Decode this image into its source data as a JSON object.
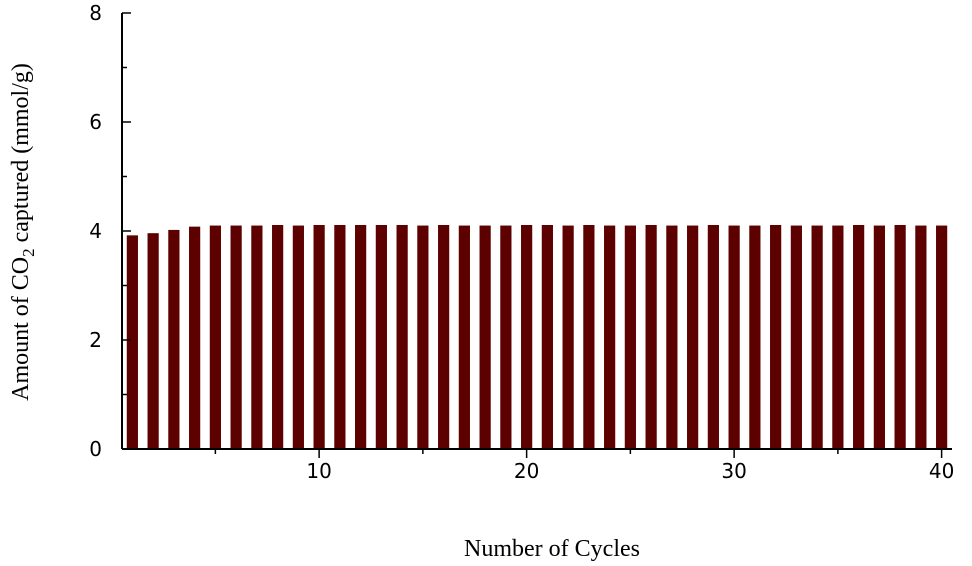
{
  "chart_data": {
    "type": "bar",
    "title": "",
    "xlabel": "Number of Cycles",
    "ylabel": {
      "before": "Amount  of CO",
      "subscript": "2",
      "after": " captured (mmol/g)"
    },
    "xlim": [
      0.5,
      40.5
    ],
    "ylim": [
      0,
      8
    ],
    "x_ticks": [
      10,
      20,
      30,
      40
    ],
    "y_ticks": [
      0,
      2,
      4,
      6,
      8
    ],
    "grid": false,
    "legend": "none",
    "bar_color": "#5c0000",
    "categories": [
      1,
      2,
      3,
      4,
      5,
      6,
      7,
      8,
      9,
      10,
      11,
      12,
      13,
      14,
      15,
      16,
      17,
      18,
      19,
      20,
      21,
      22,
      23,
      24,
      25,
      26,
      27,
      28,
      29,
      30,
      31,
      32,
      33,
      34,
      35,
      36,
      37,
      38,
      39,
      40
    ],
    "values": [
      3.92,
      3.96,
      4.02,
      4.08,
      4.1,
      4.1,
      4.1,
      4.11,
      4.1,
      4.11,
      4.11,
      4.11,
      4.11,
      4.11,
      4.1,
      4.11,
      4.1,
      4.1,
      4.1,
      4.11,
      4.11,
      4.1,
      4.11,
      4.1,
      4.1,
      4.11,
      4.1,
      4.1,
      4.11,
      4.1,
      4.1,
      4.11,
      4.1,
      4.1,
      4.1,
      4.11,
      4.1,
      4.11,
      4.1,
      4.1
    ]
  }
}
